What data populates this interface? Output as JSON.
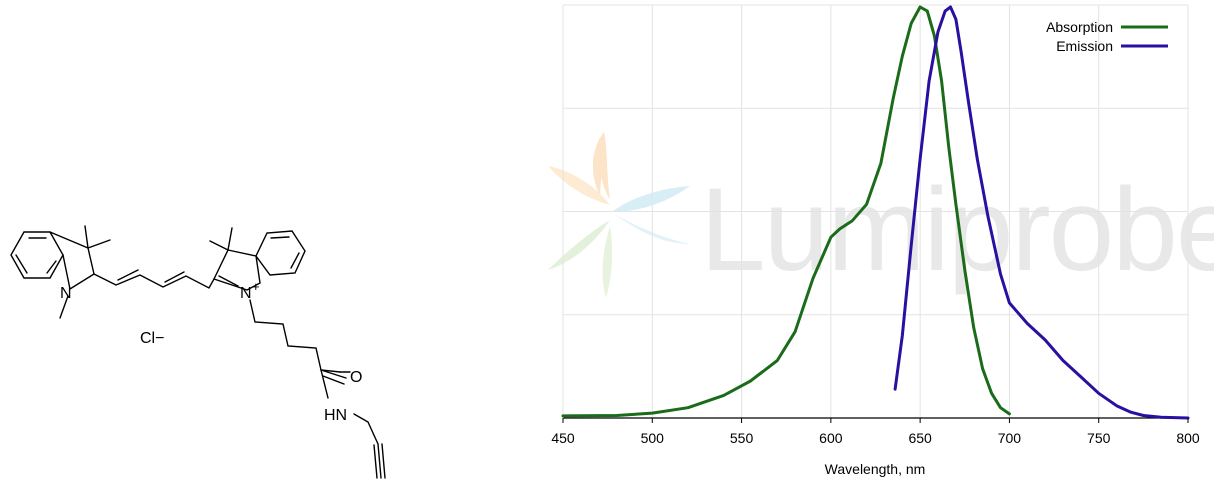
{
  "molecule": {
    "atoms": {
      "n_left": "N",
      "n_right": "N",
      "charge": "+",
      "counterion": "Cl−",
      "carbonyl_o": "O",
      "amide_nh": "HN"
    }
  },
  "watermark": {
    "text": "Lumiprobe"
  },
  "chart_data": {
    "type": "line",
    "title": "",
    "xlabel": "Wavelength, nm",
    "ylabel": "",
    "xlim": [
      450,
      800
    ],
    "ylim": [
      0,
      1
    ],
    "xticks": [
      450,
      500,
      550,
      600,
      650,
      700,
      750,
      800
    ],
    "grid": true,
    "legend_position": "top-right",
    "series": [
      {
        "name": "Absorption",
        "color": "#1a6b1a",
        "x": [
          450,
          480,
          500,
          520,
          540,
          555,
          570,
          580,
          590,
          600,
          605,
          612,
          620,
          628,
          635,
          640,
          645,
          650,
          654,
          658,
          662,
          666,
          670,
          675,
          680,
          685,
          690,
          695,
          700
        ],
        "y": [
          0.005,
          0.006,
          0.012,
          0.025,
          0.055,
          0.09,
          0.14,
          0.21,
          0.34,
          0.44,
          0.46,
          0.48,
          0.52,
          0.62,
          0.78,
          0.88,
          0.96,
          1.0,
          0.99,
          0.93,
          0.82,
          0.66,
          0.52,
          0.36,
          0.22,
          0.12,
          0.06,
          0.025,
          0.01
        ]
      },
      {
        "name": "Emission",
        "color": "#2a0fa0",
        "x": [
          636,
          640,
          645,
          650,
          655,
          660,
          664,
          667,
          670,
          673,
          677,
          682,
          688,
          695,
          700,
          710,
          720,
          730,
          740,
          750,
          760,
          768,
          775,
          785,
          800
        ],
        "y": [
          0.07,
          0.2,
          0.42,
          0.63,
          0.82,
          0.94,
          0.99,
          1.0,
          0.97,
          0.89,
          0.77,
          0.63,
          0.49,
          0.35,
          0.28,
          0.23,
          0.19,
          0.14,
          0.1,
          0.06,
          0.03,
          0.014,
          0.006,
          0.002,
          0.0
        ]
      }
    ]
  }
}
